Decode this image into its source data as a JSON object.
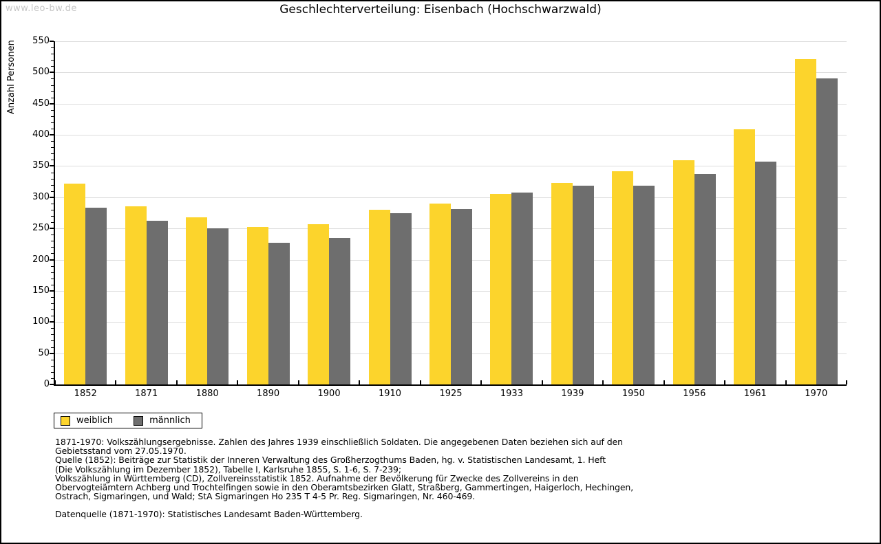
{
  "watermark": "www.leo-bw.de",
  "header": {
    "title": "Geschlechterverteilung: Eisenbach (Hochschwarzwald)"
  },
  "colors": {
    "background": "#ffffff",
    "border": "#000000",
    "grid": "#dcdcdc",
    "axis": "#000000",
    "watermark": "#c6c6c6",
    "female": "#fcd42c",
    "male": "#6e6e6e"
  },
  "chart_data": {
    "type": "bar",
    "title": "Geschlechterverteilung: Eisenbach (Hochschwarzwald)",
    "xlabel": "",
    "ylabel": "Anzahl Personen",
    "ylim": [
      0,
      550
    ],
    "ytick_step": 50,
    "minor_tick_step": 10,
    "grid": true,
    "legend_position": "bottom-left",
    "categories": [
      "1852",
      "1871",
      "1880",
      "1890",
      "1900",
      "1910",
      "1925",
      "1933",
      "1939",
      "1950",
      "1956",
      "1961",
      "1970"
    ],
    "series": [
      {
        "name": "weiblich",
        "color": "#fcd42c",
        "values": [
          322,
          285,
          268,
          252,
          257,
          280,
          290,
          305,
          323,
          342,
          359,
          409,
          521
        ]
      },
      {
        "name": "männlich",
        "color": "#6e6e6e",
        "values": [
          283,
          262,
          250,
          227,
          235,
          274,
          281,
          307,
          318,
          318,
          337,
          357,
          490
        ]
      }
    ]
  },
  "footer": {
    "lines": [
      "1871-1970: Volkszählungsergebnisse. Zahlen des Jahres 1939 einschließlich Soldaten. Die angegebenen Daten beziehen sich auf den",
      "Gebietsstand vom 27.05.1970.",
      "Quelle (1852): Beiträge zur Statistik der Inneren Verwaltung des Großherzogthums Baden, hg. v. Statistischen Landesamt, 1. Heft",
      "(Die Volkszählung im Dezember 1852), Tabelle I, Karlsruhe 1855, S. 1-6, S. 7-239;",
      "Volkszählung in Württemberg (CD), Zollvereinsstatistik 1852. Aufnahme der Bevölkerung für Zwecke des Zollvereins in den",
      "Obervogteiämtern Achberg und Trochtelfingen sowie in den Oberamtsbezirken Glatt, Straßberg, Gammertingen, Haigerloch, Hechingen,",
      "Ostrach, Sigmaringen, und Wald; StA Sigmaringen Ho 235 T 4-5 Pr. Reg. Sigmaringen, Nr. 460-469."
    ],
    "datasource": "Datenquelle (1871-1970): Statistisches Landesamt Baden-Württemberg."
  }
}
